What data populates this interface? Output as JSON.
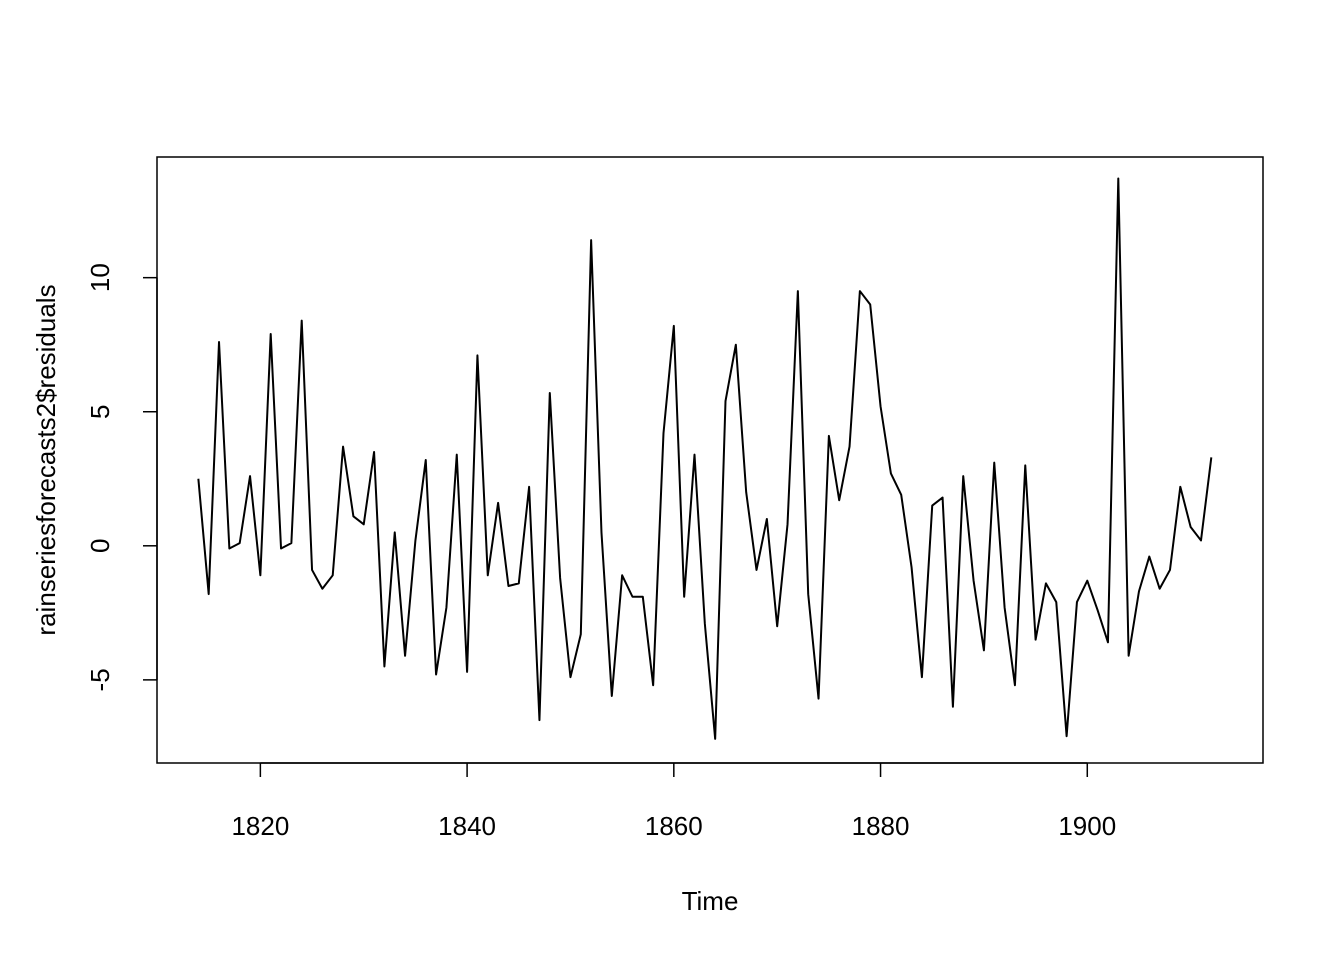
{
  "chart_data": {
    "type": "line",
    "xlabel": "Time",
    "ylabel": "rainseriesforecasts2$residuals",
    "xlim": [
      1810,
      1917
    ],
    "ylim": [
      -8.1,
      14.5
    ],
    "x_ticks": [
      1820,
      1840,
      1860,
      1880,
      1900
    ],
    "y_ticks": [
      -5,
      0,
      5,
      10
    ],
    "grid": false,
    "series": [
      {
        "x": [
          1814,
          1815,
          1816,
          1817,
          1818,
          1819,
          1820,
          1821,
          1822,
          1823,
          1824,
          1825,
          1826,
          1827,
          1828,
          1829,
          1830,
          1831,
          1832,
          1833,
          1834,
          1835,
          1836,
          1837,
          1838,
          1839,
          1840,
          1841,
          1842,
          1843,
          1844,
          1845,
          1846,
          1847,
          1848,
          1849,
          1850,
          1851,
          1852,
          1853,
          1854,
          1855,
          1856,
          1857,
          1858,
          1859,
          1860,
          1861,
          1862,
          1863,
          1864,
          1865,
          1866,
          1867,
          1868,
          1869,
          1870,
          1871,
          1872,
          1873,
          1874,
          1875,
          1876,
          1877,
          1878,
          1879,
          1880,
          1881,
          1882,
          1883,
          1884,
          1885,
          1886,
          1887,
          1888,
          1889,
          1890,
          1891,
          1892,
          1893,
          1894,
          1895,
          1896,
          1897,
          1898,
          1899,
          1900,
          1901,
          1902,
          1903,
          1904,
          1905,
          1906,
          1907,
          1908,
          1909,
          1910,
          1911,
          1912
        ],
        "values": [
          2.5,
          -1.8,
          7.6,
          -0.1,
          0.1,
          2.6,
          -1.1,
          7.9,
          -0.1,
          0.1,
          8.4,
          -0.9,
          -1.6,
          -1.1,
          3.7,
          1.1,
          0.8,
          3.5,
          -4.5,
          0.5,
          -4.1,
          0.2,
          3.2,
          -4.8,
          -2.3,
          3.4,
          -4.7,
          7.1,
          -1.1,
          1.6,
          -1.5,
          -1.4,
          2.2,
          -6.5,
          5.7,
          -1.2,
          -4.9,
          -3.3,
          11.4,
          0.5,
          -5.6,
          -1.1,
          -1.9,
          -1.9,
          -5.2,
          4.2,
          8.2,
          -1.9,
          3.4,
          -2.9,
          -7.2,
          5.4,
          7.5,
          2.0,
          -0.9,
          1.0,
          -3.0,
          0.8,
          9.5,
          -1.8,
          -5.7,
          4.1,
          1.7,
          3.7,
          9.5,
          9.0,
          5.2,
          2.7,
          1.9,
          -0.8,
          -4.9,
          1.5,
          1.8,
          -6.0,
          2.6,
          -1.3,
          -3.9,
          3.1,
          -2.3,
          -5.2,
          3.0,
          -3.5,
          -1.4,
          -2.1,
          -7.1,
          -2.1,
          -1.3,
          -2.4,
          -3.6,
          13.7,
          -4.1,
          -1.7,
          -0.4,
          -1.6,
          -0.9,
          2.2,
          0.7,
          0.2,
          3.3
        ]
      }
    ]
  }
}
